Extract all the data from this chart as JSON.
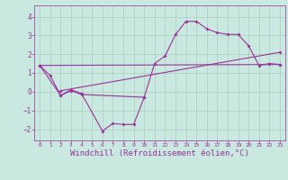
{
  "background_color": "#c8e8e0",
  "line_color": "#993399",
  "grid_color": "#aaccbb",
  "xlabel": "Windchill (Refroidissement éolien,°C)",
  "xlabel_fontsize": 6.5,
  "ylim": [
    -2.6,
    4.6
  ],
  "xlim": [
    -0.5,
    23.5
  ],
  "xticks": [
    0,
    1,
    2,
    3,
    4,
    5,
    6,
    7,
    8,
    9,
    10,
    11,
    12,
    13,
    14,
    15,
    16,
    17,
    18,
    19,
    20,
    21,
    22,
    23
  ],
  "yticks": [
    -2,
    -1,
    0,
    1,
    2,
    3,
    4
  ],
  "series": [
    {
      "x": [
        0,
        1,
        2,
        3,
        4,
        6,
        7,
        8,
        9,
        10
      ],
      "y": [
        1.4,
        0.85,
        -0.2,
        0.1,
        -0.1,
        -2.1,
        -1.7,
        -1.75,
        -1.75,
        -0.3
      ]
    },
    {
      "x": [
        0,
        2,
        3,
        4,
        10,
        11,
        12,
        13,
        14,
        15,
        16,
        17,
        18,
        19,
        20,
        21,
        22,
        23
      ],
      "y": [
        1.4,
        -0.2,
        0.05,
        -0.15,
        -0.3,
        1.5,
        1.9,
        3.05,
        3.75,
        3.75,
        3.35,
        3.15,
        3.05,
        3.05,
        2.45,
        1.4,
        1.5,
        1.45
      ]
    },
    {
      "x": [
        0,
        23
      ],
      "y": [
        1.4,
        1.45
      ]
    },
    {
      "x": [
        2,
        23
      ],
      "y": [
        0.05,
        2.1
      ]
    }
  ],
  "marker": "D",
  "markersize": 2.0,
  "linewidth": 0.8
}
